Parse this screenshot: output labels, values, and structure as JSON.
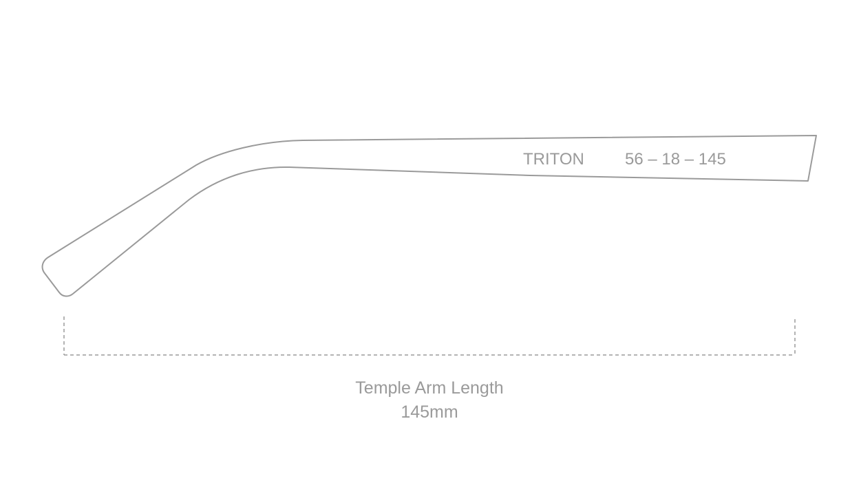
{
  "model": "TRITON",
  "size": "56 – 18 – 145",
  "measurement": {
    "label": "Temple Arm Length",
    "value": "145mm"
  }
}
